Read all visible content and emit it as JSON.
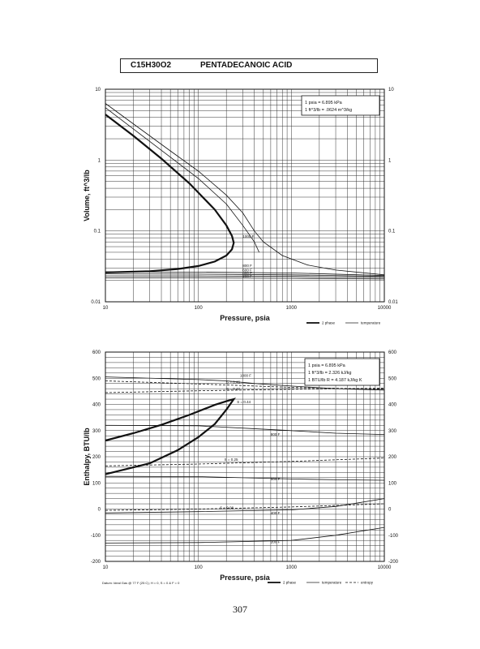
{
  "header": {
    "formula": "C15H30O2",
    "name": "PENTADECANOIC ACID"
  },
  "page_number": "307",
  "chart_data": [
    {
      "type": "line",
      "xlabel": "Pressure,  psia",
      "ylabel": "Volume, ft^3/lb",
      "xscale": "log",
      "yscale": "log",
      "xlim": [
        10,
        10000
      ],
      "ylim": [
        0.01,
        10
      ],
      "x_ticks": [
        "10",
        "100",
        "1000",
        "10000"
      ],
      "y_ticks": [
        "0.01",
        "0.1",
        "1",
        "10"
      ],
      "grid": true,
      "note_box": [
        "1 psia  =  6.895 kPa",
        "1 ft^3/lb  =  .0624 m^3/kg"
      ],
      "legend": {
        "position": "bottom-right",
        "entries": [
          "2 phase",
          "temperature"
        ]
      },
      "series": [
        {
          "name": "2 phase",
          "style": "thick",
          "x": [
            10,
            20,
            40,
            80,
            150,
            200,
            230,
            240,
            230,
            200,
            150,
            100,
            60,
            30,
            10
          ],
          "y": [
            4.4,
            2.2,
            1.05,
            0.47,
            0.2,
            0.12,
            0.085,
            0.068,
            0.055,
            0.045,
            0.037,
            0.032,
            0.029,
            0.027,
            0.026
          ]
        },
        {
          "name": "1000 F",
          "style": "thin",
          "x": [
            10,
            50,
            100,
            200,
            300,
            400,
            500,
            800,
            1500,
            3000,
            10000
          ],
          "y": [
            6.3,
            1.35,
            0.7,
            0.32,
            0.18,
            0.1,
            0.07,
            0.045,
            0.033,
            0.028,
            0.024
          ]
        },
        {
          "name": "",
          "style": "thin",
          "x": [
            10,
            50,
            100,
            200,
            300,
            350,
            400,
            450
          ],
          "y": [
            5.5,
            1.1,
            0.55,
            0.24,
            0.12,
            0.09,
            0.07,
            0.05
          ]
        },
        {
          "name": "800 F",
          "style": "thin",
          "x": [
            10,
            100,
            1000,
            10000
          ],
          "y": [
            0.0265,
            0.0262,
            0.0255,
            0.0235
          ]
        },
        {
          "name": "600 F",
          "style": "thin",
          "x": [
            10,
            100,
            1000,
            10000
          ],
          "y": [
            0.0248,
            0.0246,
            0.024,
            0.0228
          ]
        },
        {
          "name": "400 F",
          "style": "thin",
          "x": [
            10,
            100,
            1000,
            10000
          ],
          "y": [
            0.0232,
            0.0231,
            0.0228,
            0.022
          ]
        },
        {
          "name": "200 F",
          "style": "thin",
          "x": [
            10,
            100,
            1000,
            10000
          ],
          "y": [
            0.0218,
            0.0217,
            0.0215,
            0.021
          ]
        }
      ],
      "annotations": [
        "1000 F",
        "800 F",
        "600 F",
        "400 F",
        "200 F"
      ]
    },
    {
      "type": "line",
      "xlabel": "Pressure,  psia",
      "ylabel": "Enthalpy, BTU/lb",
      "xscale": "log",
      "xlim": [
        10,
        10000
      ],
      "ylim": [
        -200,
        600
      ],
      "x_ticks": [
        "10",
        "100",
        "1000",
        "10000"
      ],
      "y_ticks_left": [
        "-200",
        "-100",
        "0",
        "100",
        "200",
        "300",
        "400",
        "500",
        "600"
      ],
      "y_ticks_right": [
        "-200",
        "-100",
        "0",
        "100",
        "200",
        "300",
        "400",
        "500",
        "600"
      ],
      "grid": true,
      "note_box": [
        "1 psia  =  6.895 kPa",
        "1 ft^3/lb  =  2.326 kJ/kg",
        "1 BTU/lb R  =  4.187 kJ/kg K"
      ],
      "legend": {
        "position": "bottom-right",
        "entries": [
          "2 phase",
          "temperature",
          "entropy"
        ]
      },
      "footnote": "Datum: Ideal Gas @ 77 F (25 C);  H = 0,  S = 0 & F = 0",
      "series": [
        {
          "name": "2 phase",
          "style": "thick",
          "x": [
            10,
            20,
            40,
            80,
            150,
            200,
            240,
            200,
            150,
            100,
            60,
            30,
            10
          ],
          "y": [
            262,
            290,
            322,
            360,
            398,
            412,
            420,
            380,
            325,
            275,
            225,
            175,
            133
          ]
        },
        {
          "name": "1000 F",
          "style": "thin",
          "x": [
            10,
            100,
            200,
            400,
            1000,
            3000,
            10000
          ],
          "y": [
            505,
            495,
            490,
            480,
            470,
            460,
            455
          ]
        },
        {
          "name": "800 F",
          "style": "thin",
          "x": [
            10,
            100,
            1000,
            3000,
            10000
          ],
          "y": [
            320,
            318,
            300,
            290,
            285
          ]
        },
        {
          "name": "600 F",
          "style": "thin",
          "x": [
            10,
            100,
            1000,
            3000,
            10000
          ],
          "y": [
            125,
            124,
            115,
            112,
            110
          ]
        },
        {
          "name": "400 F",
          "style": "thin",
          "x": [
            10,
            100,
            1000,
            3000,
            10000
          ],
          "y": [
            -15,
            -10,
            -3,
            10,
            40
          ]
        },
        {
          "name": "200 F",
          "style": "thin",
          "x": [
            10,
            100,
            1000,
            3000,
            10000
          ],
          "y": [
            -130,
            -128,
            -120,
            -100,
            -70
          ]
        },
        {
          "name": "S = 0.46",
          "style": "dashed",
          "x": [
            10,
            100,
            1000,
            10000
          ],
          "y": [
            490,
            478,
            465,
            458
          ]
        },
        {
          "name": "S = 0.42",
          "style": "dashed",
          "x": [
            10,
            100,
            1000,
            10000
          ],
          "y": [
            445,
            452,
            458,
            462
          ]
        },
        {
          "name": "S = 0.25",
          "style": "dashed",
          "x": [
            10,
            100,
            1000,
            10000
          ],
          "y": [
            165,
            172,
            182,
            195
          ]
        },
        {
          "name": "S = 0.08",
          "style": "dashed",
          "x": [
            10,
            100,
            1000,
            10000
          ],
          "y": [
            -5,
            0,
            8,
            20
          ]
        }
      ],
      "annotations": [
        "1000 F",
        "S = 0.46",
        "S = 0.42",
        "S = 0.44",
        "800 F",
        "S = 0.25",
        "600 F",
        "S = 0.08",
        "400 F",
        "200 F"
      ]
    }
  ]
}
